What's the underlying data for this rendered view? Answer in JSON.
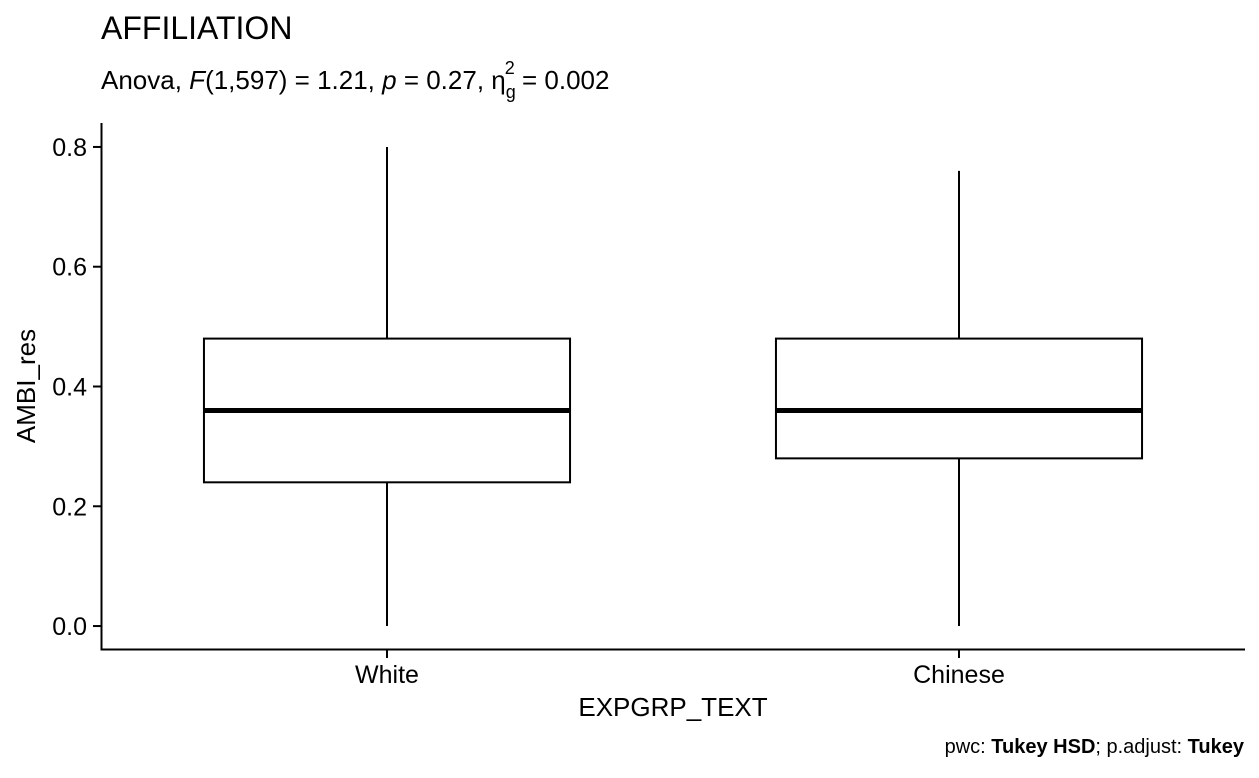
{
  "chart_data": {
    "type": "boxplot",
    "title": "AFFILIATION",
    "subtitle": {
      "prefix": "Anova, ",
      "stat_symbol": "F",
      "df": "(1,597) = 1.21, ",
      "p_symbol": "p",
      "p_value": " = 0.27, ",
      "eta_symbol": "η",
      "eta_sub": "g",
      "eta_sup": "2",
      "eta_value": " = 0.002"
    },
    "xlabel": "EXPGRP_TEXT",
    "ylabel": "AMBI_res",
    "ylim": [
      -0.04,
      0.84
    ],
    "yticks": [
      0.0,
      0.2,
      0.4,
      0.6,
      0.8
    ],
    "ytick_labels": [
      "0.0",
      "0.2",
      "0.4",
      "0.6",
      "0.8"
    ],
    "categories": [
      "White",
      "Chinese"
    ],
    "series": [
      {
        "category": "White",
        "min": 0.0,
        "q1": 0.24,
        "median": 0.36,
        "q3": 0.48,
        "max": 0.8
      },
      {
        "category": "Chinese",
        "min": 0.0,
        "q1": 0.28,
        "median": 0.36,
        "q3": 0.48,
        "max": 0.76
      }
    ],
    "grid": false,
    "caption": {
      "pwc_label": "pwc: ",
      "pwc_value": "Tukey HSD",
      "sep": "; p.adjust: ",
      "adjust_value": "Tukey"
    },
    "colors": {
      "box_fill": "#ffffff",
      "line": "#000000"
    }
  }
}
